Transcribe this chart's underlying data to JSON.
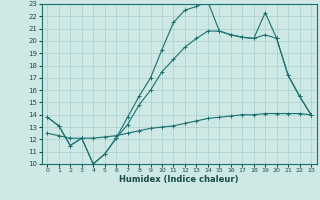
{
  "title": "",
  "xlabel": "Humidex (Indice chaleur)",
  "bg_color": "#cde8e5",
  "grid_color": "#aacfcc",
  "line_color": "#1a7070",
  "xlim": [
    -0.5,
    23.5
  ],
  "ylim": [
    10,
    23
  ],
  "xticks": [
    0,
    1,
    2,
    3,
    4,
    5,
    6,
    7,
    8,
    9,
    10,
    11,
    12,
    13,
    14,
    15,
    16,
    17,
    18,
    19,
    20,
    21,
    22,
    23
  ],
  "yticks": [
    10,
    11,
    12,
    13,
    14,
    15,
    16,
    17,
    18,
    19,
    20,
    21,
    22,
    23
  ],
  "line1_x": [
    0,
    1,
    2,
    3,
    4,
    5,
    6,
    7,
    8,
    9,
    10,
    11,
    12,
    13,
    14,
    15,
    16,
    17,
    18,
    19,
    20,
    21,
    22,
    23
  ],
  "line1_y": [
    13.8,
    13.1,
    11.5,
    12.1,
    10.0,
    10.8,
    12.1,
    13.8,
    15.5,
    17.0,
    19.3,
    21.5,
    22.5,
    22.8,
    23.2,
    20.8,
    20.5,
    20.3,
    20.2,
    22.3,
    20.2,
    17.2,
    15.5,
    14.0
  ],
  "line2_x": [
    0,
    1,
    2,
    3,
    4,
    5,
    6,
    7,
    8,
    9,
    10,
    11,
    12,
    13,
    14,
    15,
    16,
    17,
    18,
    19,
    20,
    21,
    22,
    23
  ],
  "line2_y": [
    13.8,
    13.1,
    11.5,
    12.1,
    10.0,
    10.8,
    12.1,
    13.2,
    14.8,
    16.0,
    17.5,
    18.5,
    19.5,
    20.2,
    20.8,
    20.8,
    20.5,
    20.3,
    20.2,
    20.5,
    20.2,
    17.2,
    15.5,
    14.0
  ],
  "line3_x": [
    0,
    1,
    2,
    3,
    4,
    5,
    6,
    7,
    8,
    9,
    10,
    11,
    12,
    13,
    14,
    15,
    16,
    17,
    18,
    19,
    20,
    21,
    22,
    23
  ],
  "line3_y": [
    12.5,
    12.3,
    12.1,
    12.1,
    12.1,
    12.2,
    12.3,
    12.5,
    12.7,
    12.9,
    13.0,
    13.1,
    13.3,
    13.5,
    13.7,
    13.8,
    13.9,
    14.0,
    14.0,
    14.1,
    14.1,
    14.1,
    14.1,
    14.0
  ]
}
